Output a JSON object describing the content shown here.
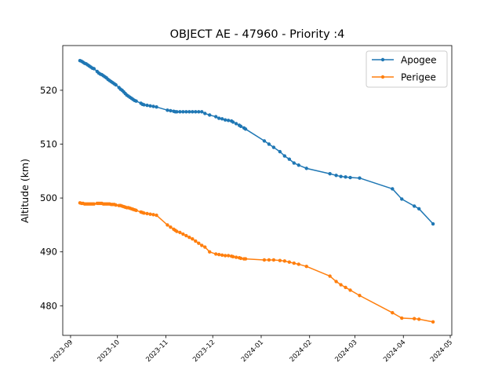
{
  "chart_data": {
    "type": "line",
    "title": "OBJECT AE - 47960 - Priority :4",
    "xlabel": "",
    "ylabel": "Altitude (km)",
    "xlim": [
      "2023-08-27",
      "2024-05-02"
    ],
    "ylim": [
      474.5,
      528.3
    ],
    "x_ticks": [
      "2023-09",
      "2023-10",
      "2023-11",
      "2023-12",
      "2024-01",
      "2024-02",
      "2024-03",
      "2024-04",
      "2024-05"
    ],
    "y_ticks": [
      480,
      490,
      500,
      510,
      520
    ],
    "grid": false,
    "legend_position": "upper right",
    "series": [
      {
        "name": "Apogee",
        "color": "#1f77b4",
        "points": [
          [
            "2023-09-07",
            525.5
          ],
          [
            "2023-09-08",
            525.4
          ],
          [
            "2023-09-09",
            525.2
          ],
          [
            "2023-09-10",
            525.0
          ],
          [
            "2023-09-11",
            524.9
          ],
          [
            "2023-09-12",
            524.7
          ],
          [
            "2023-09-13",
            524.5
          ],
          [
            "2023-09-14",
            524.3
          ],
          [
            "2023-09-15",
            524.1
          ],
          [
            "2023-09-16",
            524.0
          ],
          [
            "2023-09-18",
            523.5
          ],
          [
            "2023-09-19",
            523.2
          ],
          [
            "2023-09-20",
            523.0
          ],
          [
            "2023-09-21",
            522.9
          ],
          [
            "2023-09-22",
            522.7
          ],
          [
            "2023-09-23",
            522.5
          ],
          [
            "2023-09-24",
            522.3
          ],
          [
            "2023-09-25",
            522.0
          ],
          [
            "2023-09-26",
            521.8
          ],
          [
            "2023-09-27",
            521.6
          ],
          [
            "2023-09-28",
            521.4
          ],
          [
            "2023-09-29",
            521.2
          ],
          [
            "2023-09-30",
            521.0
          ],
          [
            "2023-10-02",
            520.5
          ],
          [
            "2023-10-03",
            520.2
          ],
          [
            "2023-10-04",
            520.0
          ],
          [
            "2023-10-05",
            519.7
          ],
          [
            "2023-10-06",
            519.4
          ],
          [
            "2023-10-07",
            519.1
          ],
          [
            "2023-10-08",
            518.9
          ],
          [
            "2023-10-09",
            518.7
          ],
          [
            "2023-10-10",
            518.5
          ],
          [
            "2023-10-11",
            518.3
          ],
          [
            "2023-10-12",
            518.1
          ],
          [
            "2023-10-13",
            518.0
          ],
          [
            "2023-10-16",
            517.6
          ],
          [
            "2023-10-17",
            517.4
          ],
          [
            "2023-10-18",
            517.3
          ],
          [
            "2023-10-20",
            517.2
          ],
          [
            "2023-10-22",
            517.1
          ],
          [
            "2023-10-24",
            517.0
          ],
          [
            "2023-10-26",
            516.9
          ],
          [
            "2023-11-02",
            516.3
          ],
          [
            "2023-11-04",
            516.2
          ],
          [
            "2023-11-06",
            516.1
          ],
          [
            "2023-11-07",
            516.0
          ],
          [
            "2023-11-08",
            516.0
          ],
          [
            "2023-11-10",
            516.0
          ],
          [
            "2023-11-12",
            516.0
          ],
          [
            "2023-11-14",
            516.0
          ],
          [
            "2023-11-16",
            516.0
          ],
          [
            "2023-11-18",
            516.0
          ],
          [
            "2023-11-20",
            516.0
          ],
          [
            "2023-11-22",
            516.0
          ],
          [
            "2023-11-24",
            516.0
          ],
          [
            "2023-11-26",
            515.7
          ],
          [
            "2023-11-29",
            515.4
          ],
          [
            "2023-12-03",
            515.1
          ],
          [
            "2023-12-05",
            514.8
          ],
          [
            "2023-12-07",
            514.7
          ],
          [
            "2023-12-09",
            514.5
          ],
          [
            "2023-12-11",
            514.4
          ],
          [
            "2023-12-13",
            514.3
          ],
          [
            "2023-12-14",
            514.1
          ],
          [
            "2023-12-16",
            513.8
          ],
          [
            "2023-12-18",
            513.5
          ],
          [
            "2023-12-19",
            513.3
          ],
          [
            "2023-12-21",
            513.0
          ],
          [
            "2023-12-22",
            512.8
          ],
          [
            "2024-01-03",
            510.6
          ],
          [
            "2024-01-06",
            510.0
          ],
          [
            "2024-01-09",
            509.4
          ],
          [
            "2024-01-13",
            508.6
          ],
          [
            "2024-01-16",
            507.8
          ],
          [
            "2024-01-19",
            507.2
          ],
          [
            "2024-01-22",
            506.5
          ],
          [
            "2024-01-25",
            506.1
          ],
          [
            "2024-01-30",
            505.5
          ],
          [
            "2024-02-14",
            504.5
          ],
          [
            "2024-02-18",
            504.2
          ],
          [
            "2024-02-21",
            504.0
          ],
          [
            "2024-02-24",
            503.9
          ],
          [
            "2024-02-27",
            503.8
          ],
          [
            "2024-03-04",
            503.7
          ],
          [
            "2024-03-25",
            501.7
          ],
          [
            "2024-03-31",
            499.8
          ],
          [
            "2024-04-08",
            498.5
          ],
          [
            "2024-04-11",
            498.0
          ],
          [
            "2024-04-20",
            495.2
          ]
        ]
      },
      {
        "name": "Perigee",
        "color": "#ff7f0e",
        "points": [
          [
            "2023-09-07",
            499.1
          ],
          [
            "2023-09-08",
            499.0
          ],
          [
            "2023-09-09",
            499.0
          ],
          [
            "2023-09-10",
            498.9
          ],
          [
            "2023-09-11",
            498.9
          ],
          [
            "2023-09-12",
            498.9
          ],
          [
            "2023-09-13",
            498.9
          ],
          [
            "2023-09-14",
            498.9
          ],
          [
            "2023-09-15",
            498.9
          ],
          [
            "2023-09-16",
            498.9
          ],
          [
            "2023-09-18",
            499.0
          ],
          [
            "2023-09-19",
            499.0
          ],
          [
            "2023-09-20",
            499.0
          ],
          [
            "2023-09-21",
            499.0
          ],
          [
            "2023-09-22",
            498.9
          ],
          [
            "2023-09-23",
            498.9
          ],
          [
            "2023-09-24",
            498.9
          ],
          [
            "2023-09-25",
            498.9
          ],
          [
            "2023-09-26",
            498.9
          ],
          [
            "2023-09-27",
            498.8
          ],
          [
            "2023-09-28",
            498.8
          ],
          [
            "2023-09-29",
            498.8
          ],
          [
            "2023-09-30",
            498.7
          ],
          [
            "2023-10-02",
            498.6
          ],
          [
            "2023-10-03",
            498.6
          ],
          [
            "2023-10-04",
            498.5
          ],
          [
            "2023-10-05",
            498.4
          ],
          [
            "2023-10-06",
            498.3
          ],
          [
            "2023-10-07",
            498.2
          ],
          [
            "2023-10-08",
            498.2
          ],
          [
            "2023-10-09",
            498.1
          ],
          [
            "2023-10-10",
            498.0
          ],
          [
            "2023-10-11",
            497.9
          ],
          [
            "2023-10-12",
            497.8
          ],
          [
            "2023-10-13",
            497.7
          ],
          [
            "2023-10-16",
            497.4
          ],
          [
            "2023-10-17",
            497.3
          ],
          [
            "2023-10-18",
            497.2
          ],
          [
            "2023-10-20",
            497.1
          ],
          [
            "2023-10-22",
            497.0
          ],
          [
            "2023-10-24",
            496.9
          ],
          [
            "2023-10-26",
            496.8
          ],
          [
            "2023-11-02",
            495.0
          ],
          [
            "2023-11-04",
            494.6
          ],
          [
            "2023-11-06",
            494.2
          ],
          [
            "2023-11-07",
            494.0
          ],
          [
            "2023-11-08",
            493.8
          ],
          [
            "2023-11-10",
            493.6
          ],
          [
            "2023-11-12",
            493.3
          ],
          [
            "2023-11-14",
            493.0
          ],
          [
            "2023-11-16",
            492.7
          ],
          [
            "2023-11-18",
            492.4
          ],
          [
            "2023-11-20",
            492.0
          ],
          [
            "2023-11-22",
            491.6
          ],
          [
            "2023-11-24",
            491.2
          ],
          [
            "2023-11-26",
            490.9
          ],
          [
            "2023-11-29",
            490.0
          ],
          [
            "2023-12-03",
            489.6
          ],
          [
            "2023-12-05",
            489.5
          ],
          [
            "2023-12-07",
            489.4
          ],
          [
            "2023-12-09",
            489.3
          ],
          [
            "2023-12-11",
            489.3
          ],
          [
            "2023-12-13",
            489.2
          ],
          [
            "2023-12-14",
            489.1
          ],
          [
            "2023-12-16",
            489.0
          ],
          [
            "2023-12-18",
            488.9
          ],
          [
            "2023-12-19",
            488.8
          ],
          [
            "2023-12-21",
            488.7
          ],
          [
            "2023-12-22",
            488.7
          ],
          [
            "2024-01-03",
            488.5
          ],
          [
            "2024-01-06",
            488.5
          ],
          [
            "2024-01-09",
            488.5
          ],
          [
            "2024-01-13",
            488.4
          ],
          [
            "2024-01-16",
            488.3
          ],
          [
            "2024-01-19",
            488.1
          ],
          [
            "2024-01-22",
            487.9
          ],
          [
            "2024-01-25",
            487.7
          ],
          [
            "2024-01-30",
            487.3
          ],
          [
            "2024-02-14",
            485.5
          ],
          [
            "2024-02-18",
            484.5
          ],
          [
            "2024-02-21",
            483.9
          ],
          [
            "2024-02-24",
            483.4
          ],
          [
            "2024-02-27",
            482.9
          ],
          [
            "2024-03-04",
            481.9
          ],
          [
            "2024-03-25",
            478.7
          ],
          [
            "2024-03-31",
            477.7
          ],
          [
            "2024-04-08",
            477.6
          ],
          [
            "2024-04-11",
            477.5
          ],
          [
            "2024-04-20",
            477.0
          ]
        ]
      }
    ]
  }
}
